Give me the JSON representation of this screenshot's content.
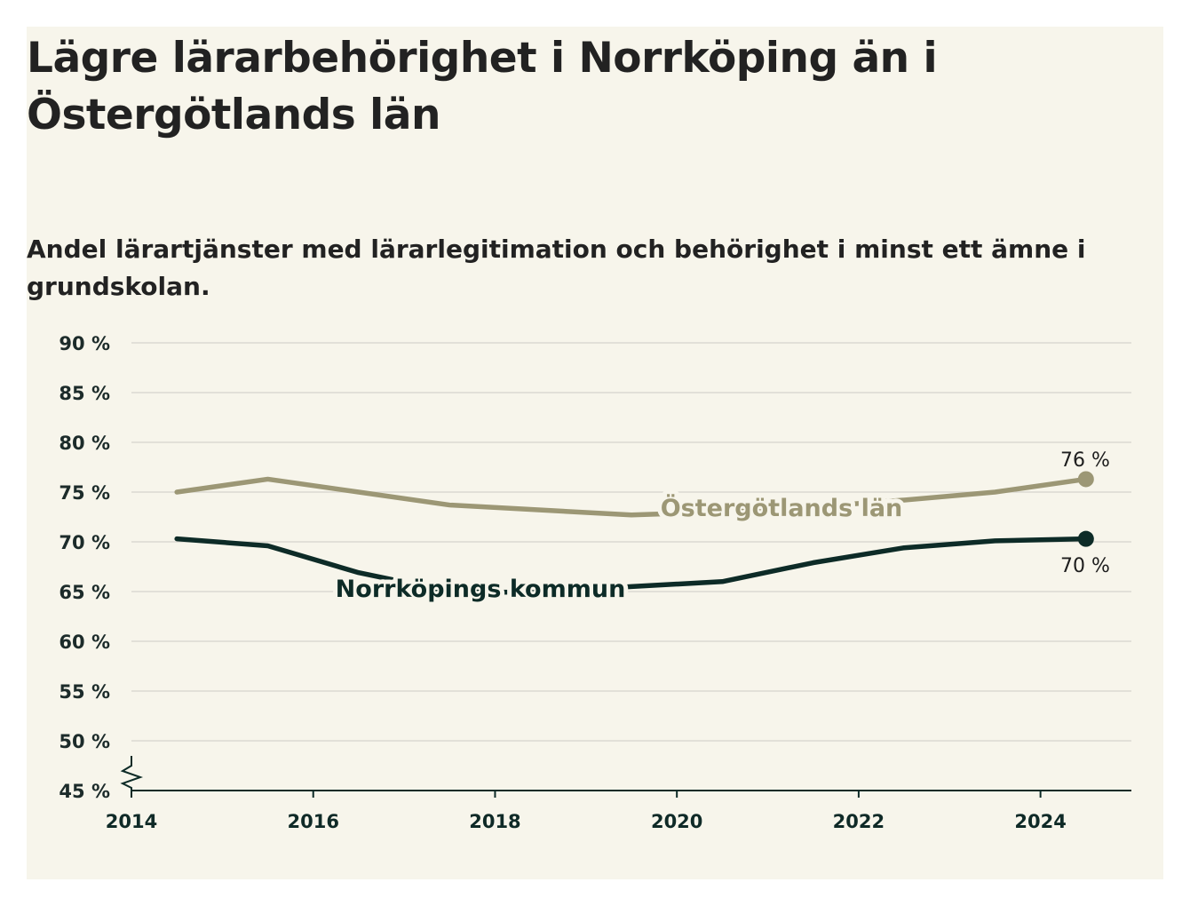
{
  "title": "Lägre lärarbehörighet i Norrköping än i Östergötlands län",
  "subtitle": "Andel lärartjänster med lärarlegitimation och behörighet i minst ett ämne i grundskolan.",
  "colors": {
    "background": "#f7f5eb",
    "region": "#9c9775",
    "municipality": "#0d2b27",
    "grid": "#dcdad2",
    "axis": "#0d2b27"
  },
  "chart_data": {
    "type": "line",
    "title": "Lägre lärarbehörighet i Norrköping än i Östergötlands län",
    "subtitle": "Andel lärartjänster med lärarlegitimation och behörighet i minst ett ämne i grundskolan.",
    "xlabel": "",
    "ylabel": "",
    "xlim": [
      2014,
      2025
    ],
    "ylim": [
      45,
      90
    ],
    "y_axis_break": true,
    "grid": true,
    "x_tick_values": [
      2014,
      2016,
      2018,
      2020,
      2022,
      2024
    ],
    "x_tick_labels": [
      "2014",
      "2016",
      "2018",
      "2020",
      "2022",
      "2024"
    ],
    "y_tick_values": [
      45,
      50,
      55,
      60,
      65,
      70,
      75,
      80,
      85,
      90
    ],
    "y_tick_labels": [
      "45 %",
      "50 %",
      "55 %",
      "60 %",
      "65 %",
      "70 %",
      "75 %",
      "80 %",
      "85 %",
      "90 %"
    ],
    "series": [
      {
        "name": "Östergötlands län",
        "color": "#9c9775",
        "x": [
          2014.5,
          2015.5,
          2016.5,
          2017.5,
          2018.5,
          2019.5,
          2020.5,
          2021.5,
          2022.5,
          2023.5,
          2024.5
        ],
        "values": [
          75.0,
          76.3,
          75.0,
          73.7,
          73.2,
          72.7,
          73.0,
          73.5,
          74.2,
          75.0,
          76.3
        ],
        "end_label": "76 %"
      },
      {
        "name": "Norrköpings kommun",
        "color": "#0d2b27",
        "x": [
          2014.5,
          2015.5,
          2016.5,
          2017.5,
          2018.5,
          2019.5,
          2020.5,
          2021.5,
          2022.5,
          2023.5,
          2024.5
        ],
        "values": [
          70.3,
          69.6,
          66.9,
          65.0,
          64.9,
          65.5,
          66.0,
          67.9,
          69.4,
          70.1,
          70.3
        ],
        "end_label": "70 %"
      }
    ]
  }
}
